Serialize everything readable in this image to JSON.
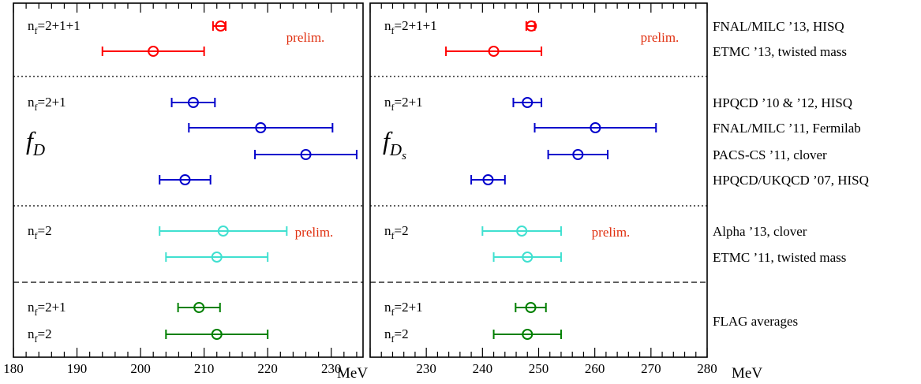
{
  "chart_data": {
    "type": "scatter",
    "subtype": "error-bar comparison",
    "unit": "MeV",
    "panels": [
      {
        "id": "fD",
        "symbol_main": "f",
        "symbol_sub": "D",
        "subsub": "",
        "xlim": [
          180,
          235
        ],
        "x_ticks": [
          180,
          190,
          200,
          210,
          220,
          230
        ],
        "points": [
          {
            "row": 0,
            "collab": "FNAL/MILC '13, HISQ",
            "value": 212.6,
            "err_lo": 1.2,
            "err_hi": 0.8,
            "color": "#ff0000"
          },
          {
            "row": 1,
            "collab": "ETMC '13, twisted mass",
            "value": 202,
            "err_lo": 8,
            "err_hi": 8,
            "color": "#ff0000"
          },
          {
            "row": 2,
            "collab": "HPQCD '10 & '12, HISQ",
            "value": 208.3,
            "err_lo": 3.4,
            "err_hi": 3.4,
            "color": "#0000cc"
          },
          {
            "row": 3,
            "collab": "FNAL/MILC '11, Fermilab",
            "value": 218.9,
            "err_lo": 11.3,
            "err_hi": 11.3,
            "color": "#0000cc"
          },
          {
            "row": 4,
            "collab": "PACS-CS '11, clover",
            "value": 226,
            "err_lo": 8,
            "err_hi": 8,
            "color": "#0000cc"
          },
          {
            "row": 5,
            "collab": "HPQCD/UKQCD '07, HISQ",
            "value": 207,
            "err_lo": 4,
            "err_hi": 4,
            "color": "#0000cc"
          },
          {
            "row": 6,
            "collab": "Alpha '13, clover",
            "value": 213,
            "err_lo": 10,
            "err_hi": 10,
            "color": "#40e0d0"
          },
          {
            "row": 7,
            "collab": "ETMC '11, twisted mass",
            "value": 212,
            "err_lo": 8,
            "err_hi": 8,
            "color": "#40e0d0"
          },
          {
            "row": 8,
            "collab": "FLAG averages n_f=2+1",
            "value": 209.2,
            "err_lo": 3.3,
            "err_hi": 3.3,
            "color": "#008000"
          },
          {
            "row": 9,
            "collab": "FLAG averages n_f=2",
            "value": 212,
            "err_lo": 8,
            "err_hi": 8,
            "color": "#008000"
          }
        ]
      },
      {
        "id": "fDs",
        "symbol_main": "f",
        "symbol_sub": "D",
        "subsub": "s",
        "xlim": [
          220,
          280
        ],
        "x_ticks": [
          230,
          240,
          250,
          260,
          270,
          280
        ],
        "points": [
          {
            "row": 0,
            "collab": "FNAL/MILC '13, HISQ",
            "value": 248.7,
            "err_lo": 0.9,
            "err_hi": 0.6,
            "color": "#ff0000"
          },
          {
            "row": 1,
            "collab": "ETMC '13, twisted mass",
            "value": 242,
            "err_lo": 8.5,
            "err_hi": 8.5,
            "color": "#ff0000"
          },
          {
            "row": 2,
            "collab": "HPQCD '10 & '12, HISQ",
            "value": 248,
            "err_lo": 2.5,
            "err_hi": 2.5,
            "color": "#0000cc"
          },
          {
            "row": 3,
            "collab": "FNAL/MILC '11, Fermilab",
            "value": 260.1,
            "err_lo": 10.8,
            "err_hi": 10.8,
            "color": "#0000cc"
          },
          {
            "row": 4,
            "collab": "PACS-CS '11, clover",
            "value": 257,
            "err_lo": 5.3,
            "err_hi": 5.3,
            "color": "#0000cc"
          },
          {
            "row": 5,
            "collab": "HPQCD/UKQCD '07, HISQ",
            "value": 241,
            "err_lo": 3,
            "err_hi": 3,
            "color": "#0000cc"
          },
          {
            "row": 6,
            "collab": "Alpha '13, clover",
            "value": 247,
            "err_lo": 7,
            "err_hi": 7,
            "color": "#40e0d0"
          },
          {
            "row": 7,
            "collab": "ETMC '11, twisted mass",
            "value": 248,
            "err_lo": 6,
            "err_hi": 6,
            "color": "#40e0d0"
          },
          {
            "row": 8,
            "collab": "FLAG averages n_f=2+1",
            "value": 248.6,
            "err_lo": 2.7,
            "err_hi": 2.7,
            "color": "#008000"
          },
          {
            "row": 9,
            "collab": "FLAG averages n_f=2",
            "value": 248,
            "err_lo": 6,
            "err_hi": 6,
            "color": "#008000"
          }
        ]
      }
    ],
    "nf_labels": [
      {
        "row": 0,
        "base": "n",
        "sub": "f",
        "rest": "=2+1+1"
      },
      {
        "row": 2,
        "base": "n",
        "sub": "f",
        "rest": "=2+1"
      },
      {
        "row": 6,
        "base": "n",
        "sub": "f",
        "rest": "=2"
      },
      {
        "row": 8,
        "base": "n",
        "sub": "f",
        "rest": "=2+1"
      },
      {
        "row": 9,
        "base": "n",
        "sub": "f",
        "rest": "=2"
      }
    ],
    "prelim_labels": [
      {
        "row": 0,
        "text": "prelim.",
        "color": "#e03010"
      },
      {
        "row": 6,
        "text": "prelim.",
        "color": "#e03010"
      }
    ],
    "right_labels": [
      {
        "row": 0,
        "text": "FNAL/MILC ’13, HISQ"
      },
      {
        "row": 1,
        "text": "ETMC ’13, twisted mass"
      },
      {
        "row": 2,
        "text": "HPQCD ’10 & ’12, HISQ"
      },
      {
        "row": 3,
        "text": "FNAL/MILC ’11, Fermilab"
      },
      {
        "row": 4,
        "text": "PACS-CS ’11, clover"
      },
      {
        "row": 5,
        "text": "HPQCD/UKQCD ’07, HISQ"
      },
      {
        "row": 6,
        "text": "Alpha ’13, clover"
      },
      {
        "row": 7,
        "text": "ETMC ’11, twisted mass"
      },
      {
        "row": 8.5,
        "text": "FLAG averages"
      }
    ],
    "separators": [
      {
        "after_row": 1,
        "style": "dotted"
      },
      {
        "after_row": 5,
        "style": "dotted"
      },
      {
        "after_row": 7,
        "style": "dashed"
      }
    ],
    "x_unit_label": "MeV",
    "grid": false
  }
}
